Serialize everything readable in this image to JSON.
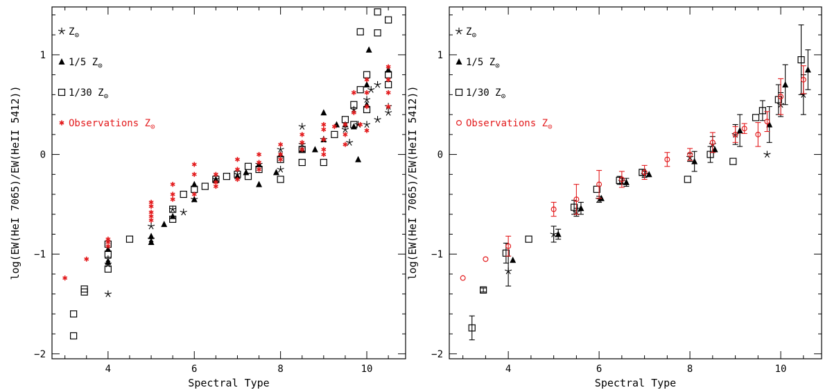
{
  "chart_data": [
    {
      "type": "scatter",
      "panel": "left",
      "xlabel": "Spectral Type",
      "ylabel": "log(EW(HeI 7065)/EW(HeII 5412))",
      "xlim": [
        2.7,
        10.9
      ],
      "ylim": [
        -2.05,
        1.48
      ],
      "xticks": [
        4,
        6,
        8,
        10
      ],
      "yticks": [
        -2,
        -1,
        0,
        1
      ],
      "series": [
        {
          "name": "Z⊙",
          "label": "Z⊙",
          "marker": "star",
          "color": "#000000",
          "points": [
            [
              4,
              -1.4
            ],
            [
              4,
              -1.05
            ],
            [
              4,
              -1.1
            ],
            [
              5,
              -0.72
            ],
            [
              5,
              -0.85
            ],
            [
              5.75,
              -0.58
            ],
            [
              5.5,
              -0.55
            ],
            [
              6,
              -0.45
            ],
            [
              6.5,
              -0.25
            ],
            [
              7,
              -0.2
            ],
            [
              7.5,
              -0.1
            ],
            [
              8,
              -0.15
            ],
            [
              8,
              0.05
            ],
            [
              8.5,
              0.28
            ],
            [
              8.5,
              0.1
            ],
            [
              9,
              0.15
            ],
            [
              9.5,
              0.25
            ],
            [
              9.7,
              0.45
            ],
            [
              9.6,
              0.12
            ],
            [
              9.8,
              0.3
            ],
            [
              10,
              0.55
            ],
            [
              10,
              0.3
            ],
            [
              10.1,
              0.65
            ],
            [
              10.25,
              0.35
            ],
            [
              10.25,
              0.7
            ],
            [
              10.5,
              0.42
            ],
            [
              10.5,
              0.48
            ]
          ]
        },
        {
          "name": "1/5 Z⊙",
          "label": "1/5 Z⊙",
          "marker": "triangle",
          "color": "#000000",
          "points": [
            [
              4,
              -0.95
            ],
            [
              4,
              -1.08
            ],
            [
              5,
              -0.82
            ],
            [
              5,
              -0.88
            ],
            [
              5.3,
              -0.7
            ],
            [
              5.5,
              -0.62
            ],
            [
              6,
              -0.45
            ],
            [
              6,
              -0.3
            ],
            [
              6.5,
              -0.25
            ],
            [
              7,
              -0.22
            ],
            [
              7.2,
              -0.18
            ],
            [
              7.5,
              -0.3
            ],
            [
              7.5,
              -0.1
            ],
            [
              7.9,
              -0.18
            ],
            [
              8,
              0.0
            ],
            [
              8.5,
              0.05
            ],
            [
              8.8,
              0.05
            ],
            [
              9,
              0.42
            ],
            [
              9,
              0.15
            ],
            [
              9.3,
              0.3
            ],
            [
              9.5,
              0.3
            ],
            [
              9.7,
              0.28
            ],
            [
              9.8,
              -0.05
            ],
            [
              10,
              0.5
            ],
            [
              10.05,
              1.05
            ],
            [
              10,
              0.7
            ],
            [
              10.5,
              0.85
            ]
          ]
        },
        {
          "name": "1/30 Z⊙",
          "label": "1/30 Z⊙",
          "marker": "square",
          "color": "#000000",
          "points": [
            [
              3.2,
              -1.6
            ],
            [
              3.2,
              -1.82
            ],
            [
              3.45,
              -1.35
            ],
            [
              3.45,
              -1.38
            ],
            [
              4,
              -0.9
            ],
            [
              4,
              -1.0
            ],
            [
              4,
              -1.15
            ],
            [
              4.5,
              -0.85
            ],
            [
              5.5,
              -0.65
            ],
            [
              5.5,
              -0.55
            ],
            [
              5.75,
              -0.4
            ],
            [
              6,
              -0.35
            ],
            [
              6.25,
              -0.32
            ],
            [
              6.5,
              -0.25
            ],
            [
              6.75,
              -0.22
            ],
            [
              7,
              -0.2
            ],
            [
              7.25,
              -0.12
            ],
            [
              7.25,
              -0.22
            ],
            [
              7.5,
              -0.15
            ],
            [
              8,
              -0.25
            ],
            [
              8,
              -0.05
            ],
            [
              8.5,
              -0.08
            ],
            [
              8.5,
              0.05
            ],
            [
              9,
              -0.08
            ],
            [
              9.25,
              0.2
            ],
            [
              9.5,
              0.35
            ],
            [
              9.7,
              0.5
            ],
            [
              9.7,
              0.3
            ],
            [
              9.85,
              0.65
            ],
            [
              9.85,
              1.23
            ],
            [
              10,
              0.8
            ],
            [
              10,
              0.45
            ],
            [
              10.25,
              1.22
            ],
            [
              10.25,
              1.43
            ],
            [
              10.5,
              1.35
            ],
            [
              10.5,
              0.8
            ],
            [
              10.5,
              0.7
            ]
          ]
        },
        {
          "name": "Observations Z⊙",
          "label": "Observations Z⊙",
          "marker": "asterisk",
          "color": "#e31a1c",
          "points": [
            [
              3,
              -1.24
            ],
            [
              3.5,
              -1.05
            ],
            [
              4,
              -0.85
            ],
            [
              4,
              -0.88
            ],
            [
              4,
              -0.92
            ],
            [
              5,
              -0.48
            ],
            [
              5,
              -0.52
            ],
            [
              5,
              -0.58
            ],
            [
              5,
              -0.62
            ],
            [
              5,
              -0.66
            ],
            [
              5.5,
              -0.3
            ],
            [
              5.5,
              -0.4
            ],
            [
              5.5,
              -0.45
            ],
            [
              6,
              -0.1
            ],
            [
              6,
              -0.2
            ],
            [
              6,
              -0.4
            ],
            [
              6.5,
              -0.2
            ],
            [
              6.5,
              -0.28
            ],
            [
              6.5,
              -0.32
            ],
            [
              7,
              -0.05
            ],
            [
              7,
              -0.15
            ],
            [
              7,
              -0.25
            ],
            [
              7.5,
              0.0
            ],
            [
              7.5,
              -0.08
            ],
            [
              7.5,
              -0.15
            ],
            [
              8,
              0.1
            ],
            [
              8,
              0.0
            ],
            [
              8,
              -0.05
            ],
            [
              8.5,
              0.2
            ],
            [
              8.5,
              0.12
            ],
            [
              8.5,
              0.05
            ],
            [
              9,
              0.3
            ],
            [
              9,
              0.25
            ],
            [
              9,
              0.15
            ],
            [
              9,
              0.05
            ],
            [
              9,
              0.0
            ],
            [
              9.25,
              0.28
            ],
            [
              9.5,
              0.3
            ],
            [
              9.5,
              0.2
            ],
            [
              9.5,
              0.1
            ],
            [
              9.7,
              0.62
            ],
            [
              9.7,
              0.42
            ],
            [
              9.85,
              0.3
            ],
            [
              10,
              0.75
            ],
            [
              10,
              0.62
            ],
            [
              10,
              0.48
            ],
            [
              10,
              0.24
            ],
            [
              10.5,
              0.88
            ],
            [
              10.5,
              0.75
            ],
            [
              10.5,
              0.62
            ],
            [
              10.5,
              0.48
            ]
          ]
        }
      ]
    },
    {
      "type": "scatter",
      "panel": "right",
      "xlabel": "Spectral Type",
      "ylabel": "log(EW(HeI 7065)/EW(HeII 5412))",
      "xlim": [
        2.7,
        10.9
      ],
      "ylim": [
        -2.05,
        1.48
      ],
      "xticks": [
        4,
        6,
        8,
        10
      ],
      "yticks": [
        -2,
        -1,
        0,
        1
      ],
      "series": [
        {
          "name": "Z⊙",
          "label": "Z⊙",
          "marker": "star",
          "color": "#000000",
          "points": [
            [
              4,
              -1.17,
              0.15
            ],
            [
              5,
              -0.8,
              0.08
            ],
            [
              5.5,
              -0.58,
              0.04
            ],
            [
              6,
              -0.45,
              0.03
            ],
            [
              6.5,
              -0.27,
              0.03
            ],
            [
              7,
              -0.2,
              0.03
            ],
            [
              8,
              -0.03,
              0.04
            ],
            [
              8.5,
              0.1,
              0.08
            ],
            [
              9,
              0.2,
              0.1
            ],
            [
              9.7,
              0.0,
              0
            ],
            [
              10,
              0.5,
              0.12
            ],
            [
              10.5,
              0.6,
              0.2
            ]
          ]
        },
        {
          "name": "1/5 Z⊙",
          "label": "1/5 Z⊙",
          "marker": "triangle",
          "color": "#000000",
          "points": [
            [
              4.1,
              -1.06,
              0
            ],
            [
              5.1,
              -0.8,
              0.05
            ],
            [
              5.6,
              -0.54,
              0.06
            ],
            [
              6.05,
              -0.44,
              0
            ],
            [
              6.6,
              -0.28,
              0.04
            ],
            [
              7.1,
              -0.2,
              0
            ],
            [
              8.1,
              -0.07,
              0.1
            ],
            [
              8.55,
              0.05,
              0
            ],
            [
              9.1,
              0.24,
              0.16
            ],
            [
              9.75,
              0.3,
              0.18
            ],
            [
              10.1,
              0.7,
              0.2
            ],
            [
              10.6,
              0.85,
              0.2
            ]
          ]
        },
        {
          "name": "1/30 Z⊙",
          "label": "1/30 Z⊙",
          "marker": "square",
          "color": "#000000",
          "points": [
            [
              3.2,
              -1.74,
              0.12
            ],
            [
              3.45,
              -1.36,
              0.02
            ],
            [
              3.95,
              -0.99,
              0.1
            ],
            [
              4.45,
              -0.85,
              0
            ],
            [
              5.45,
              -0.53,
              0.07
            ],
            [
              5.95,
              -0.35,
              0
            ],
            [
              6.45,
              -0.26,
              0.04
            ],
            [
              6.95,
              -0.18,
              0.03
            ],
            [
              7.95,
              -0.25,
              0
            ],
            [
              8.45,
              0.0,
              0.08
            ],
            [
              8.95,
              -0.07,
              0
            ],
            [
              9.45,
              0.37,
              0
            ],
            [
              9.6,
              0.44,
              0.1
            ],
            [
              9.95,
              0.55,
              0.15
            ],
            [
              10.45,
              0.95,
              0.35
            ]
          ]
        },
        {
          "name": "Observations Z⊙",
          "label": "Observations Z⊙",
          "marker": "circle",
          "color": "#e31a1c",
          "points": [
            [
              3,
              -1.24,
              0
            ],
            [
              3.5,
              -1.05,
              0
            ],
            [
              4,
              -0.92,
              0.1
            ],
            [
              5,
              -0.55,
              0.07
            ],
            [
              5.5,
              -0.45,
              0.15
            ],
            [
              6,
              -0.3,
              0.14
            ],
            [
              6.5,
              -0.25,
              0.08
            ],
            [
              7,
              -0.18,
              0.07
            ],
            [
              7.5,
              -0.05,
              0.07
            ],
            [
              8,
              0.0,
              0.06
            ],
            [
              8.5,
              0.12,
              0.1
            ],
            [
              9,
              0.2,
              0.08
            ],
            [
              9.2,
              0.26,
              0.05
            ],
            [
              9.5,
              0.2,
              0.12
            ],
            [
              9.7,
              0.33,
              0.1
            ],
            [
              10,
              0.58,
              0.18
            ],
            [
              10.5,
              0.75,
              0.14
            ]
          ]
        }
      ]
    }
  ]
}
